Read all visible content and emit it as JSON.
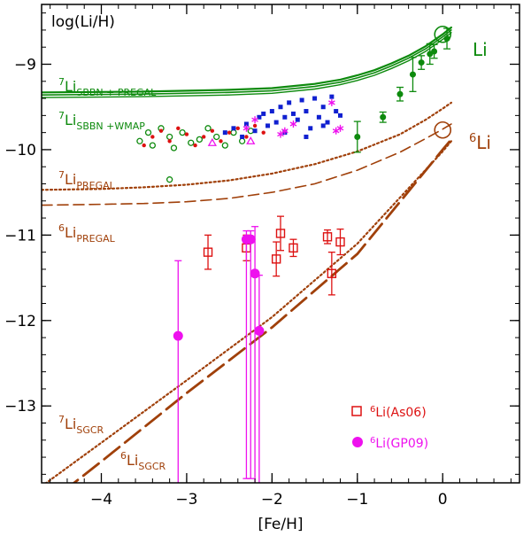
{
  "chart_data": {
    "type": "scatter",
    "title": "",
    "xlabel": "[Fe/H]",
    "ylabel": "log(Li/H)",
    "xlim": [
      -4.7,
      0.9
    ],
    "ylim": [
      -13.9,
      -8.3
    ],
    "xticks": [
      -4,
      -3,
      -2,
      -1,
      0
    ],
    "yticks": [
      -9,
      -10,
      -11,
      -12,
      -13
    ],
    "colors": {
      "green": "#0d8a0d",
      "brown": "#a0400a",
      "red": "#dd1111",
      "magenta": "#ee11ee",
      "blue": "#1020d0"
    },
    "curve_labels": {
      "sbbn_pregal": {
        "pre": "7",
        "el": "Li",
        "sub": "SBBN + PREGAL"
      },
      "sbbn_wmap": {
        "pre": "7",
        "el": "Li",
        "sub": "SBBN +WMAP"
      },
      "li7_pregal": {
        "pre": "7",
        "el": "Li",
        "sub": "PREGAL"
      },
      "li6_pregal": {
        "pre": "6",
        "el": "Li",
        "sub": "PREGAL"
      },
      "li7_sgcr": {
        "pre": "7",
        "el": "Li",
        "sub": "SGCR"
      },
      "li6_sgcr": {
        "pre": "6",
        "el": "Li",
        "sub": "SGCR"
      }
    },
    "right_labels": {
      "li7": {
        "text": "Li"
      },
      "li6": {
        "pre": "6",
        "el": "Li"
      }
    },
    "legend": [
      {
        "pre": "6",
        "text": "Li(As06)",
        "marker": "open-square",
        "color": "red"
      },
      {
        "pre": "6",
        "text": "Li(GP09)",
        "marker": "filled-circle",
        "color": "magenta"
      }
    ],
    "curves": [
      {
        "name": "Li7 SBBN+PREGAL upper",
        "style": "solid",
        "color": "green",
        "width": 2.2,
        "x": [
          -4.7,
          -3.5,
          -2.5,
          -2.0,
          -1.5,
          -1.2,
          -1.0,
          -0.8,
          -0.6,
          -0.4,
          -0.2,
          0.0,
          0.1
        ],
        "y": [
          -9.33,
          -9.32,
          -9.3,
          -9.28,
          -9.23,
          -9.18,
          -9.13,
          -9.07,
          -8.99,
          -8.9,
          -8.79,
          -8.65,
          -8.57
        ]
      },
      {
        "name": "Li7 SBBN+PREGAL mid",
        "style": "solid",
        "color": "green",
        "width": 1.6,
        "x": [
          -4.7,
          -3.5,
          -2.5,
          -2.0,
          -1.5,
          -1.2,
          -1.0,
          -0.8,
          -0.6,
          -0.4,
          -0.2,
          0.0,
          0.1
        ],
        "y": [
          -9.36,
          -9.35,
          -9.33,
          -9.31,
          -9.26,
          -9.21,
          -9.16,
          -9.1,
          -9.02,
          -8.93,
          -8.82,
          -8.68,
          -8.6
        ]
      },
      {
        "name": "Li7 SBBN+WMAP",
        "style": "solid",
        "color": "green",
        "width": 1.4,
        "x": [
          -4.7,
          -3.5,
          -2.5,
          -2.0,
          -1.5,
          -1.2,
          -1.0,
          -0.8,
          -0.6,
          -0.4,
          -0.2,
          0.0,
          0.1
        ],
        "y": [
          -9.39,
          -9.38,
          -9.36,
          -9.34,
          -9.29,
          -9.24,
          -9.19,
          -9.13,
          -9.05,
          -8.96,
          -8.85,
          -8.71,
          -8.63
        ]
      },
      {
        "name": "Li7 PREGAL",
        "style": "dotted",
        "color": "brown",
        "width": 2.2,
        "x": [
          -4.7,
          -4.0,
          -3.5,
          -3.0,
          -2.5,
          -2.0,
          -1.5,
          -1.0,
          -0.5,
          -0.2,
          0.0,
          0.1
        ],
        "y": [
          -10.47,
          -10.46,
          -10.44,
          -10.41,
          -10.36,
          -10.28,
          -10.17,
          -10.02,
          -9.82,
          -9.65,
          -9.52,
          -9.45
        ]
      },
      {
        "name": "Li6 PREGAL",
        "style": "dashed",
        "color": "brown",
        "width": 1.6,
        "x": [
          -4.7,
          -4.0,
          -3.5,
          -3.0,
          -2.5,
          -2.0,
          -1.5,
          -1.0,
          -0.5,
          -0.2,
          0.0,
          0.1
        ],
        "y": [
          -10.65,
          -10.64,
          -10.63,
          -10.61,
          -10.57,
          -10.5,
          -10.4,
          -10.24,
          -10.03,
          -9.87,
          -9.76,
          -9.7
        ]
      },
      {
        "name": "Li7 SGCR",
        "style": "dotted",
        "color": "brown",
        "width": 2.2,
        "x": [
          -4.7,
          -4.0,
          -3.0,
          -2.0,
          -1.0,
          0.0,
          0.1
        ],
        "y": [
          -13.94,
          -13.43,
          -12.7,
          -11.96,
          -11.1,
          -10.02,
          -9.9
        ]
      },
      {
        "name": "Li6 SGCR",
        "style": "longdash",
        "color": "brown",
        "width": 2.8,
        "x": [
          -4.7,
          -4.0,
          -3.0,
          -2.0,
          -1.0,
          0.0,
          0.1
        ],
        "y": [
          -14.2,
          -13.65,
          -12.85,
          -12.08,
          -11.22,
          -10.0,
          -9.88
        ]
      }
    ],
    "series": [
      {
        "name": "Li7 high-metallicity (filled green, with error bars)",
        "marker": "filled-circle",
        "color": "green",
        "x": [
          -1.0,
          -0.7,
          -0.5,
          -0.35,
          -0.25,
          -0.15,
          -0.1,
          0.05
        ],
        "y": [
          -9.85,
          -9.62,
          -9.35,
          -9.12,
          -8.98,
          -8.88,
          -8.85,
          -8.7
        ],
        "err": [
          0.18,
          0.06,
          0.08,
          0.2,
          0.08,
          0.12,
          0.08,
          0.12
        ]
      },
      {
        "name": "Li7 halo dwarfs (open green circles)",
        "marker": "open-circle",
        "color": "green",
        "x": [
          -3.55,
          -3.45,
          -3.4,
          -3.3,
          -3.2,
          -3.15,
          -3.05,
          -2.95,
          -2.85,
          -2.75,
          -2.65,
          -2.55,
          -2.45,
          -2.35,
          -2.25,
          -3.2
        ],
        "y": [
          -9.9,
          -9.8,
          -9.95,
          -9.75,
          -9.85,
          -9.98,
          -9.8,
          -9.92,
          -9.88,
          -9.75,
          -9.85,
          -9.95,
          -9.8,
          -9.9,
          -9.78,
          -10.35
        ]
      },
      {
        "name": "Li7 halo dwarfs (filled red dots)",
        "marker": "small-dot",
        "color": "red",
        "x": [
          -3.5,
          -3.4,
          -3.3,
          -3.2,
          -3.1,
          -3.0,
          -2.9,
          -2.8,
          -2.7,
          -2.6,
          -2.5,
          -2.4,
          -2.3,
          -2.2,
          -2.1
        ],
        "y": [
          -9.95,
          -9.85,
          -9.78,
          -9.9,
          -9.75,
          -9.82,
          -9.95,
          -9.85,
          -9.78,
          -9.9,
          -9.8,
          -9.75,
          -9.85,
          -9.72,
          -9.8
        ]
      },
      {
        "name": "Li7 (filled blue squares)",
        "marker": "filled-square",
        "color": "blue",
        "x": [
          -2.55,
          -2.45,
          -2.35,
          -2.3,
          -2.2,
          -2.15,
          -2.05,
          -2.0,
          -1.95,
          -1.9,
          -1.85,
          -1.8,
          -1.75,
          -1.7,
          -1.65,
          -1.6,
          -1.55,
          -1.5,
          -1.45,
          -1.4,
          -1.35,
          -1.3,
          -1.25,
          -1.2,
          -1.85,
          -1.6,
          -1.4,
          -2.1
        ],
        "y": [
          -9.8,
          -9.75,
          -9.85,
          -9.7,
          -9.78,
          -9.62,
          -9.72,
          -9.55,
          -9.68,
          -9.5,
          -9.62,
          -9.45,
          -9.58,
          -9.65,
          -9.42,
          -9.55,
          -9.75,
          -9.4,
          -9.62,
          -9.5,
          -9.68,
          -9.38,
          -9.55,
          -9.6,
          -9.8,
          -9.85,
          -9.72,
          -9.58
        ]
      },
      {
        "name": "Li7 (magenta asterisks)",
        "marker": "asterisk",
        "color": "magenta",
        "x": [
          -2.3,
          -2.2,
          -1.9,
          -1.85,
          -1.75,
          -1.3,
          -1.25,
          -1.2
        ],
        "y": [
          -9.75,
          -9.65,
          -9.82,
          -9.78,
          -9.7,
          -9.45,
          -9.78,
          -9.75
        ]
      },
      {
        "name": "Li7 (magenta triangles)",
        "marker": "open-triangle",
        "color": "magenta",
        "x": [
          -2.7,
          -2.25
        ],
        "y": [
          -9.92,
          -9.9
        ]
      },
      {
        "name": "6Li(As06)",
        "marker": "open-square",
        "color": "red",
        "x": [
          -2.75,
          -2.3,
          -1.95,
          -1.9,
          -1.75,
          -1.35,
          -1.3,
          -1.2
        ],
        "y": [
          -11.2,
          -11.15,
          -11.28,
          -10.98,
          -11.15,
          -11.02,
          -11.45,
          -11.08
        ],
        "err": [
          0.2,
          0.15,
          0.2,
          0.2,
          0.1,
          0.08,
          0.25,
          0.15
        ]
      },
      {
        "name": "6Li(GP09)",
        "marker": "filled-circle",
        "color": "magenta",
        "x": [
          -3.1,
          -2.3,
          -2.25,
          -2.2,
          -2.15
        ],
        "y": [
          -12.18,
          -11.05,
          -11.05,
          -11.45,
          -12.12
        ],
        "err_lo": [
          1.8,
          2.8,
          2.8,
          2.6,
          2.0
        ],
        "err_hi": [
          0.88,
          0.1,
          0.1,
          0.55,
          0.65
        ]
      }
    ]
  }
}
